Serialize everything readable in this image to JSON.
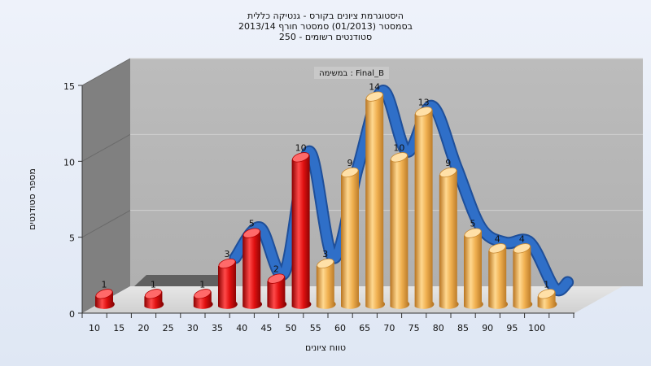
{
  "chart_data": {
    "type": "bar",
    "title_lines": [
      "היסטוגרמת ציונים בקורס - גנטיקה כללית",
      "בסמסטר  (01/2013)  סמסטר חורף 2013/14",
      "סטודנטים רשומים - 250"
    ],
    "annotation": "במשימה : Final_B",
    "xlabel": "טווח ציונים",
    "ylabel": "מספר סטודנטים",
    "x_ticks": [
      10,
      15,
      20,
      25,
      30,
      35,
      40,
      45,
      50,
      55,
      60,
      65,
      70,
      75,
      80,
      85,
      90,
      95,
      100
    ],
    "y_ticks": [
      0,
      5,
      10,
      15
    ],
    "ylim": [
      0,
      15
    ],
    "bars": [
      {
        "x": 10,
        "value": 1,
        "color": "#e01010"
      },
      {
        "x": 20,
        "value": 1,
        "color": "#e01010"
      },
      {
        "x": 30,
        "value": 1,
        "color": "#e01010"
      },
      {
        "x": 35,
        "value": 3,
        "color": "#e01010"
      },
      {
        "x": 40,
        "value": 5,
        "color": "#e01010"
      },
      {
        "x": 45,
        "value": 2,
        "color": "#e01010"
      },
      {
        "x": 50,
        "value": 10,
        "color": "#e01010"
      },
      {
        "x": 55,
        "value": 3,
        "color": "#f0a840"
      },
      {
        "x": 60,
        "value": 9,
        "color": "#f0a840"
      },
      {
        "x": 65,
        "value": 14,
        "color": "#f0a840"
      },
      {
        "x": 70,
        "value": 10,
        "color": "#f0a840"
      },
      {
        "x": 75,
        "value": 13,
        "color": "#f0a840"
      },
      {
        "x": 80,
        "value": 9,
        "color": "#f0a840"
      },
      {
        "x": 85,
        "value": 5,
        "color": "#f0a840"
      },
      {
        "x": 90,
        "value": 4,
        "color": "#f0a840"
      },
      {
        "x": 95,
        "value": 4,
        "color": "#f0a840"
      },
      {
        "x": 100,
        "value": 1,
        "color": "#f0a840"
      }
    ],
    "trend_color": "#2f6fc8",
    "grid": true
  }
}
